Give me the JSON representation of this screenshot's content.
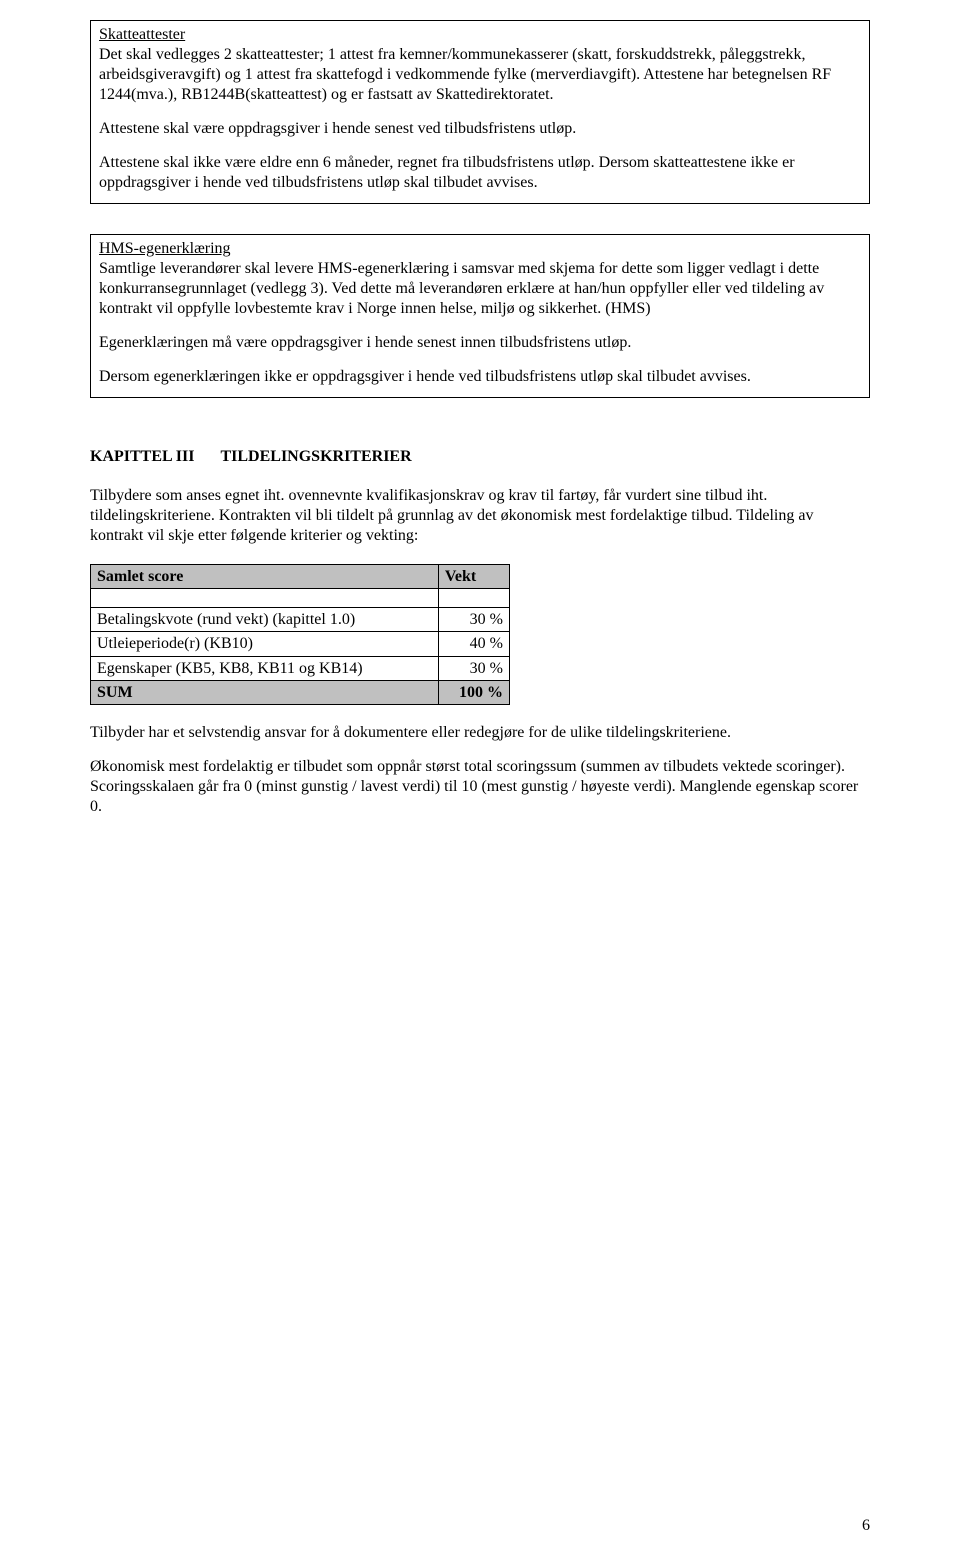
{
  "box1": {
    "title": "Skatteattester",
    "p1": "Det skal vedlegges 2 skatteattester; 1 attest fra kemner/kommunekasserer (skatt, forskuddstrekk, påleggstrekk, arbeidsgiveravgift) og 1 attest fra skattefogd i vedkommende fylke (merverdiavgift). Attestene har betegnelsen RF 1244(mva.), RB1244B(skatteattest) og er fastsatt av Skattedirektoratet.",
    "p2": "Attestene skal være oppdragsgiver i hende senest ved tilbudsfristens utløp.",
    "p3": "Attestene skal ikke være eldre enn 6 måneder, regnet fra tilbudsfristens utløp. Dersom skatteattestene ikke er oppdragsgiver i hende ved tilbudsfristens utløp skal tilbudet avvises."
  },
  "box2": {
    "title": "HMS-egenerklæring",
    "p1": "Samtlige leverandører skal levere HMS-egenerklæring i samsvar med skjema for dette som ligger vedlagt i dette konkurransegrunnlaget (vedlegg 3). Ved dette må leverandøren erklære at han/hun oppfyller eller ved tildeling av kontrakt vil oppfylle lovbestemte krav i Norge innen helse, miljø og sikkerhet. (HMS)",
    "p2": "Egenerklæringen må være oppdragsgiver i hende senest innen tilbudsfristens utløp.",
    "p3": "Dersom egenerklæringen ikke er oppdragsgiver i hende ved tilbudsfristens utløp skal tilbudet avvises."
  },
  "chapter": {
    "prefix": "KAPITTEL   III",
    "title": "TILDELINGSKRITERIER"
  },
  "intro": "Tilbydere som anses egnet iht. ovennevnte kvalifikasjonskrav og krav til fartøy, får vurdert sine tilbud iht. tildelingskriteriene. Kontrakten vil bli tildelt på grunnlag av det økonomisk mest fordelaktige tilbud. Tildeling av kontrakt vil skje etter følgende kriterier og vekting:",
  "table": {
    "headers": [
      "Samlet score",
      "Vekt"
    ],
    "rows": [
      {
        "label": "Betalingskvote (rund vekt) (kapittel 1.0)",
        "value": "30 %"
      },
      {
        "label": "Utleieperiode(r) (KB10)",
        "value": "40 %"
      },
      {
        "label": "Egenskaper (KB5, KB8, KB11 og KB14)",
        "value": "30 %"
      }
    ],
    "sum": {
      "label": "SUM",
      "value": "100 %"
    }
  },
  "after1": "Tilbyder har et selvstendig ansvar for å dokumentere eller redegjøre for de ulike tildelingskriteriene.",
  "after2": "Økonomisk mest fordelaktig er tilbudet som oppnår størst total scoringssum (summen av tilbudets vektede scoringer). Scoringsskalaen går fra 0 (minst gunstig / lavest verdi) til 10 (mest gunstig / høyeste verdi). Manglende egenskap scorer 0.",
  "pageNumber": "6"
}
